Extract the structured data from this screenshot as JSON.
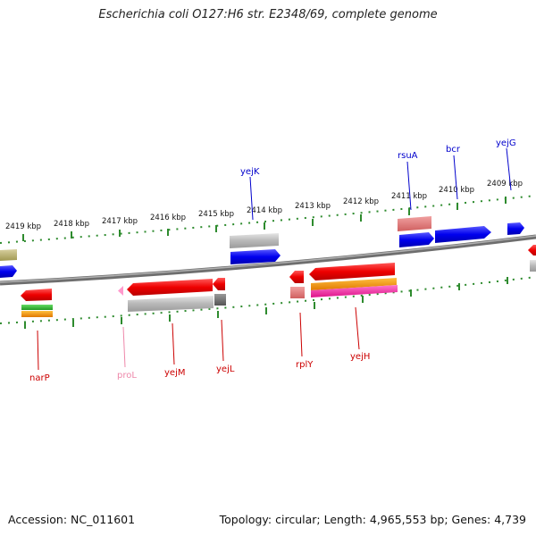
{
  "header": {
    "title": "Escherichia coli O127:H6 str. E2348/69, complete genome"
  },
  "footer": {
    "accession": "Accession: NC_011601",
    "summary": "Topology: circular; Length: 4,965,553 bp; Genes: 4,739"
  },
  "scale": {
    "ticks": [
      "2419 kbp",
      "2418 kbp",
      "2417 kbp",
      "2416 kbp",
      "2415 kbp",
      "2414 kbp",
      "2413 kbp",
      "2412 kbp",
      "2411 kbp",
      "2410 kbp",
      "2409 kbp"
    ]
  },
  "gene_labels": {
    "yejK": "yejK",
    "rsuA": "rsuA",
    "bcr": "bcr",
    "yejG": "yejG",
    "narP": "narP",
    "proL": "proL",
    "yejM": "yejM",
    "yejL": "yejL",
    "rplY": "rplY",
    "yejH": "yejH"
  },
  "colors": {
    "backbone": "#8a8a8a",
    "tick": "#2e8b2e",
    "cds_forward": "#0000ee",
    "cds_reverse": "#ee0000",
    "gene_gray": "#b5b5b5",
    "trna": "#ff99cc",
    "rrna_pink": "#e08080",
    "orange": "#ff9900",
    "magenta": "#ee3399",
    "olive": "#b8b070",
    "green": "#33bb33",
    "label_blue": "#0000cc",
    "label_red": "#cc0000",
    "label_pink": "#ee88aa"
  }
}
